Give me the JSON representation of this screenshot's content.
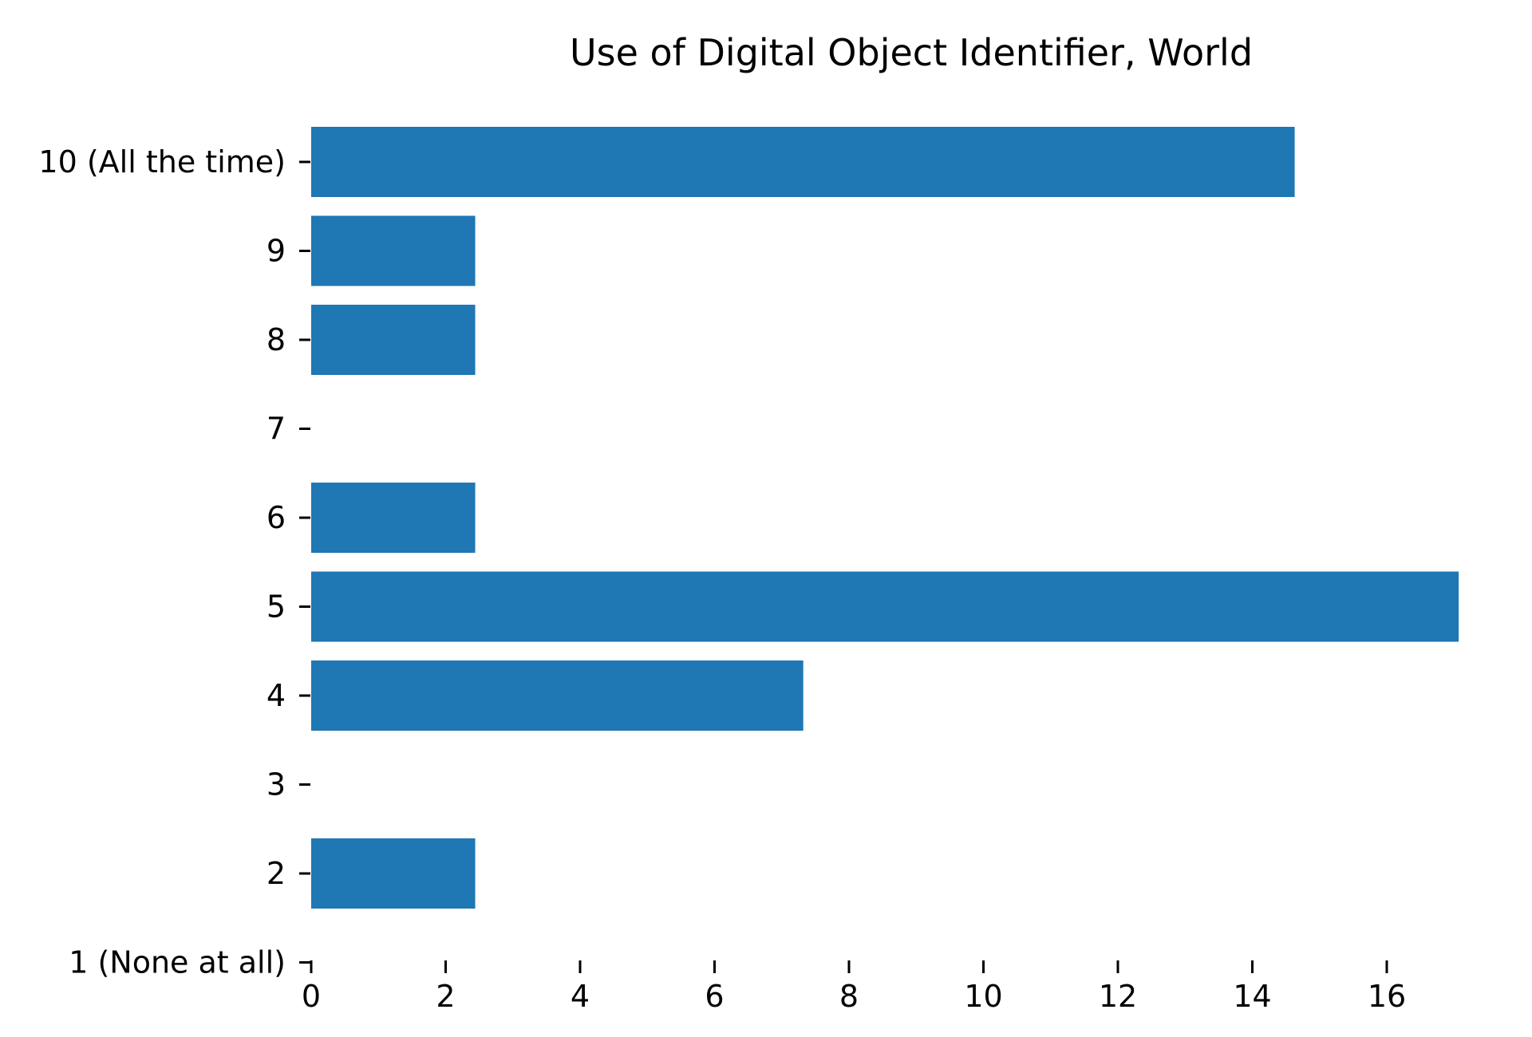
{
  "chart_data": {
    "type": "bar",
    "orientation": "horizontal",
    "title": "Use of Digital Object Identifier, World",
    "xlabel": "",
    "ylabel": "",
    "categories": [
      "1 (None at all)",
      "2",
      "3",
      "4",
      "5",
      "6",
      "7",
      "8",
      "9",
      "10 (All the time)"
    ],
    "values": [
      0,
      2.44,
      0,
      7.32,
      17.07,
      2.44,
      0,
      2.44,
      2.44,
      14.63
    ],
    "xlim": [
      0,
      17.5
    ],
    "xticks": [
      "0",
      "2",
      "4",
      "6",
      "8",
      "10",
      "12",
      "14",
      "16"
    ],
    "bar_color": "#1f77b4",
    "grid": false,
    "legend": "none"
  }
}
